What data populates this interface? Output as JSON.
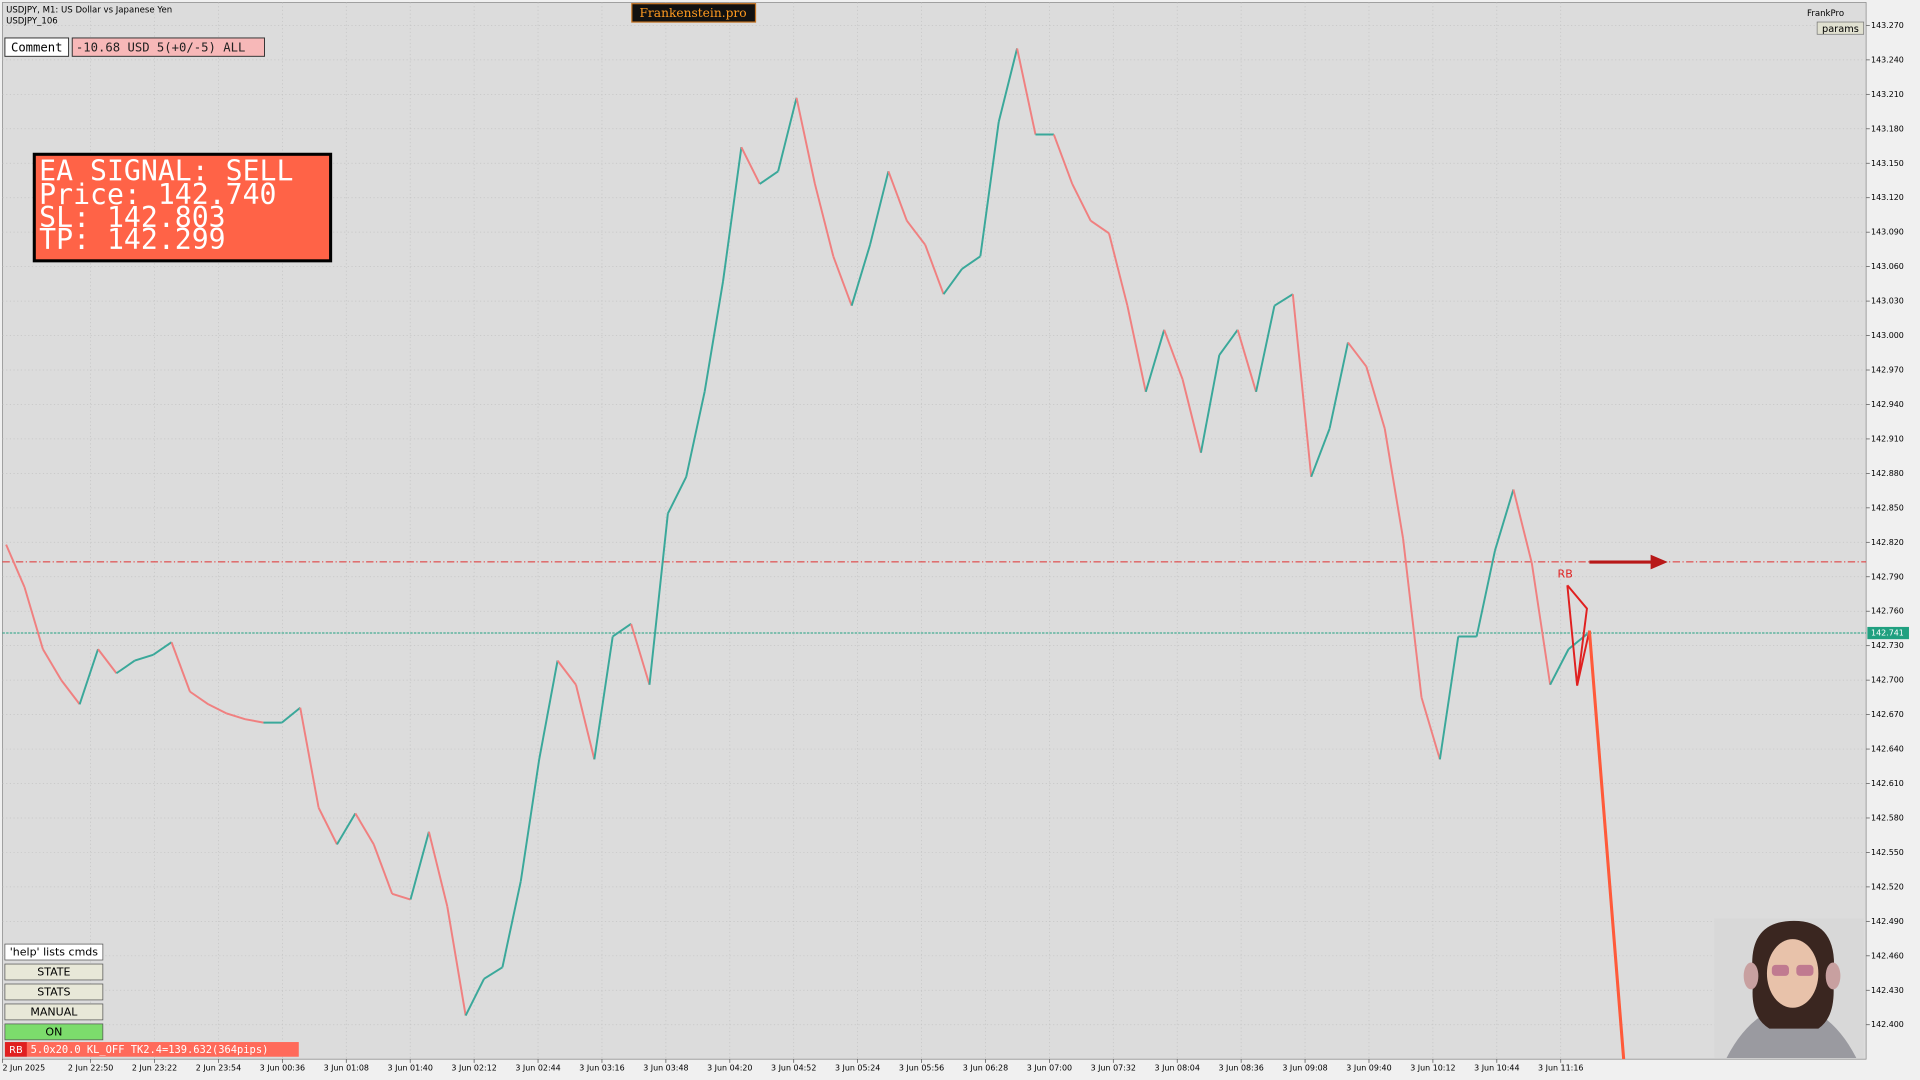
{
  "header": {
    "symbol_line": "USDJPY, M1:  US Dollar vs Japanese Yen",
    "sub_line": "USDJPY_106",
    "brand": "Frankenstein.pro",
    "user": "FrankPro",
    "params_button": "params"
  },
  "comment": {
    "label": "Comment",
    "text": "-10.68 USD 5(+0/-5) ALL"
  },
  "signal_panel": {
    "lines": [
      "EA SIGNAL: SELL",
      "Price: 142.740",
      "SL:    142.803",
      "TP:    142.299"
    ]
  },
  "buttons": [
    "'help' lists cmds",
    "STATE",
    "STATS",
    "MANUAL",
    "ON"
  ],
  "status_bar": {
    "tag": "RB",
    "text": "5.0x20.0 KL_OFF TK2.4=139.632(364pips)"
  },
  "chart_data": {
    "type": "line",
    "up_color": "#3aa89a",
    "down_color": "#f08080",
    "grid": true,
    "marker_label": "RB",
    "values": [
      142.818,
      142.781,
      142.727,
      142.7,
      142.679,
      142.727,
      142.706,
      142.717,
      142.722,
      142.733,
      142.69,
      142.679,
      142.671,
      142.666,
      142.663,
      142.663,
      142.676,
      142.589,
      142.557,
      142.584,
      142.557,
      142.514,
      142.509,
      142.568,
      142.503,
      142.408,
      142.44,
      142.45,
      142.525,
      142.631,
      142.717,
      142.696,
      142.631,
      142.738,
      142.749,
      142.696,
      142.845,
      142.877,
      142.951,
      143.047,
      143.164,
      143.132,
      143.143,
      143.207,
      143.132,
      143.069,
      143.026,
      143.079,
      143.143,
      143.1,
      143.079,
      143.036,
      143.058,
      143.069,
      143.186,
      143.25,
      143.175,
      143.175,
      143.132,
      143.1,
      143.089,
      143.026,
      142.951,
      143.005,
      142.962,
      142.898,
      142.983,
      143.005,
      142.951,
      143.026,
      143.036,
      142.877,
      142.919,
      142.994,
      142.973,
      142.919,
      142.823,
      142.685,
      142.631,
      142.738,
      142.738,
      142.813,
      142.866,
      142.802,
      142.696,
      142.727,
      142.74
    ],
    "levels": [
      {
        "value": 142.803,
        "color": "#e03030"
      },
      {
        "value": 142.741,
        "color": "#20a080"
      }
    ],
    "ylim": [
      142.37,
      143.29
    ],
    "yticks": [
      {
        "value": 143.27,
        "label": "143.270"
      },
      {
        "value": 143.24,
        "label": "143.240"
      },
      {
        "value": 143.21,
        "label": "143.210"
      },
      {
        "value": 143.18,
        "label": "143.180"
      },
      {
        "value": 143.15,
        "label": "143.150"
      },
      {
        "value": 143.12,
        "label": "143.120"
      },
      {
        "value": 143.09,
        "label": "143.090"
      },
      {
        "value": 143.06,
        "label": "143.060"
      },
      {
        "value": 143.03,
        "label": "143.030"
      },
      {
        "value": 143.0,
        "label": "143.000"
      },
      {
        "value": 142.97,
        "label": "142.970"
      },
      {
        "value": 142.94,
        "label": "142.940"
      },
      {
        "value": 142.91,
        "label": "142.910"
      },
      {
        "value": 142.88,
        "label": "142.880"
      },
      {
        "value": 142.85,
        "label": "142.850"
      },
      {
        "value": 142.82,
        "label": "142.820"
      },
      {
        "value": 142.79,
        "label": "142.790"
      },
      {
        "value": 142.76,
        "label": "142.760"
      },
      {
        "value": 142.73,
        "label": "142.730"
      },
      {
        "value": 142.7,
        "label": "142.700"
      },
      {
        "value": 142.67,
        "label": "142.670"
      },
      {
        "value": 142.64,
        "label": "142.640"
      },
      {
        "value": 142.61,
        "label": "142.610"
      },
      {
        "value": 142.58,
        "label": "142.580"
      },
      {
        "value": 142.55,
        "label": "142.550"
      },
      {
        "value": 142.52,
        "label": "142.520"
      },
      {
        "value": 142.49,
        "label": "142.490"
      },
      {
        "value": 142.46,
        "label": "142.460"
      },
      {
        "value": 142.43,
        "label": "142.430"
      },
      {
        "value": 142.4,
        "label": "142.400"
      }
    ],
    "xticks": [
      "2 Jun 2025",
      "2 Jun 22:50",
      "2 Jun 23:22",
      "2 Jun 23:54",
      "3 Jun 00:36",
      "3 Jun 01:08",
      "3 Jun 01:40",
      "3 Jun 02:12",
      "3 Jun 02:44",
      "3 Jun 03:16",
      "3 Jun 03:48",
      "3 Jun 04:20",
      "3 Jun 04:52",
      "3 Jun 05:24",
      "3 Jun 05:56",
      "3 Jun 06:28",
      "3 Jun 07:00",
      "3 Jun 07:32",
      "3 Jun 08:04",
      "3 Jun 08:36",
      "3 Jun 09:08",
      "3 Jun 09:40",
      "3 Jun 10:12",
      "3 Jun 10:44",
      "3 Jun 11:16"
    ]
  }
}
